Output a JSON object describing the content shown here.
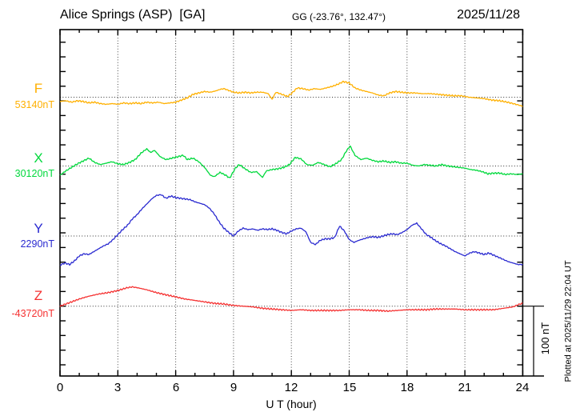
{
  "header": {
    "title": "Alice Springs (ASP)  [GA]",
    "coords": "GG (-23.76°, 132.47°)",
    "date": "2025/11/28"
  },
  "axis": {
    "xlabel": "U T (hour)",
    "ticks": [
      "0",
      "3",
      "6",
      "9",
      "12",
      "15",
      "18",
      "21",
      "24"
    ]
  },
  "scale_bar": {
    "label": "100 nT"
  },
  "footer_note": "Plotted at 2025/11/29 22:04 UT",
  "channels": [
    {
      "letter": "F",
      "value_label": "53140nT",
      "color": "#FFB000"
    },
    {
      "letter": "X",
      "value_label": "30120nT",
      "color": "#00D93C"
    },
    {
      "letter": "Y",
      "value_label": "2290nT",
      "color": "#2A2AD0"
    },
    {
      "letter": "Z",
      "value_label": "-43720nT",
      "color": "#F53131"
    }
  ],
  "chart_data": {
    "type": "line",
    "title": "Alice Springs (ASP) [GA] magnetogram 2025/11/28",
    "xlabel": "U T (hour)",
    "x_range": [
      0,
      24
    ],
    "x_major_tick": 3,
    "grid": "dotted vertical every 3 h, dotted horizontal at each channel baseline",
    "legend_position": "left margin channel labels",
    "scale": "100 nT reference bar at right",
    "series": [
      {
        "name": "F",
        "baseline_nT": 53140,
        "color": "#FFB000",
        "units": "nT offset from baseline",
        "points": [
          [
            0,
            -6
          ],
          [
            0.3,
            -5
          ],
          [
            0.6,
            -7
          ],
          [
            0.9,
            -5
          ],
          [
            1.2,
            -6
          ],
          [
            1.5,
            -8
          ],
          [
            1.8,
            -7
          ],
          [
            2.1,
            -9
          ],
          [
            2.4,
            -10
          ],
          [
            2.7,
            -9
          ],
          [
            3,
            -10
          ],
          [
            3.3,
            -8
          ],
          [
            3.6,
            -9
          ],
          [
            3.9,
            -8
          ],
          [
            4.2,
            -9
          ],
          [
            4.5,
            -7
          ],
          [
            4.8,
            -8
          ],
          [
            5.1,
            -7
          ],
          [
            5.4,
            -9
          ],
          [
            5.7,
            -8
          ],
          [
            6,
            -7
          ],
          [
            6.3,
            -4
          ],
          [
            6.6,
            -1
          ],
          [
            6.9,
            4
          ],
          [
            7.2,
            6
          ],
          [
            7.5,
            8
          ],
          [
            7.8,
            7
          ],
          [
            8.1,
            9
          ],
          [
            8.3,
            11
          ],
          [
            8.5,
            12
          ],
          [
            8.8,
            9
          ],
          [
            9,
            7
          ],
          [
            9.3,
            6
          ],
          [
            9.6,
            7
          ],
          [
            9.9,
            6
          ],
          [
            10.2,
            7
          ],
          [
            10.5,
            7
          ],
          [
            10.8,
            5
          ],
          [
            11,
            -3
          ],
          [
            11.2,
            7
          ],
          [
            11.5,
            4
          ],
          [
            11.8,
            1
          ],
          [
            12,
            5
          ],
          [
            12.3,
            13
          ],
          [
            12.6,
            12
          ],
          [
            12.9,
            10
          ],
          [
            13.2,
            12
          ],
          [
            13.5,
            11
          ],
          [
            13.8,
            13
          ],
          [
            14.1,
            15
          ],
          [
            14.4,
            18
          ],
          [
            14.7,
            22
          ],
          [
            15,
            20
          ],
          [
            15.3,
            13
          ],
          [
            15.6,
            10
          ],
          [
            15.9,
            8
          ],
          [
            16.2,
            6
          ],
          [
            16.5,
            3
          ],
          [
            16.8,
            2
          ],
          [
            17.1,
            6
          ],
          [
            17.4,
            8
          ],
          [
            17.7,
            7
          ],
          [
            18,
            6
          ],
          [
            18.4,
            6
          ],
          [
            18.8,
            5
          ],
          [
            19.2,
            5
          ],
          [
            19.6,
            4
          ],
          [
            20,
            3
          ],
          [
            20.4,
            2
          ],
          [
            20.8,
            2
          ],
          [
            21.2,
            0
          ],
          [
            21.6,
            -1
          ],
          [
            22,
            -2
          ],
          [
            22.4,
            -4
          ],
          [
            22.8,
            -5
          ],
          [
            23.2,
            -7
          ],
          [
            23.5,
            -9
          ],
          [
            23.8,
            -11
          ],
          [
            24,
            -13
          ]
        ]
      },
      {
        "name": "X",
        "baseline_nT": 30120,
        "color": "#00D93C",
        "units": "nT offset from baseline",
        "points": [
          [
            0,
            -13
          ],
          [
            0.3,
            -7
          ],
          [
            0.6,
            -2
          ],
          [
            0.9,
            3
          ],
          [
            1.2,
            7
          ],
          [
            1.5,
            11
          ],
          [
            1.8,
            5
          ],
          [
            2.1,
            2
          ],
          [
            2.4,
            4
          ],
          [
            2.7,
            6
          ],
          [
            3,
            3
          ],
          [
            3.3,
            2
          ],
          [
            3.6,
            5
          ],
          [
            3.9,
            9
          ],
          [
            4.2,
            18
          ],
          [
            4.5,
            24
          ],
          [
            4.7,
            19
          ],
          [
            4.9,
            22
          ],
          [
            5.2,
            13
          ],
          [
            5.5,
            9
          ],
          [
            5.8,
            11
          ],
          [
            6.1,
            13
          ],
          [
            6.4,
            15
          ],
          [
            6.6,
            9
          ],
          [
            6.9,
            11
          ],
          [
            7.2,
            6
          ],
          [
            7.5,
            -2
          ],
          [
            7.8,
            -13
          ],
          [
            8,
            -15
          ],
          [
            8.3,
            -9
          ],
          [
            8.6,
            -13
          ],
          [
            8.8,
            -17
          ],
          [
            9.1,
            -3
          ],
          [
            9.3,
            2
          ],
          [
            9.6,
            -4
          ],
          [
            9.9,
            -9
          ],
          [
            10.2,
            -8
          ],
          [
            10.5,
            -16
          ],
          [
            10.7,
            -7
          ],
          [
            11,
            -5
          ],
          [
            11.3,
            -4
          ],
          [
            11.6,
            -2
          ],
          [
            11.9,
            2
          ],
          [
            12.2,
            12
          ],
          [
            12.5,
            10
          ],
          [
            12.8,
            2
          ],
          [
            13.1,
            1
          ],
          [
            13.4,
            5
          ],
          [
            13.7,
            2
          ],
          [
            14,
            -1
          ],
          [
            14.3,
            3
          ],
          [
            14.6,
            9
          ],
          [
            14.85,
            21
          ],
          [
            15.05,
            28
          ],
          [
            15.3,
            15
          ],
          [
            15.6,
            9
          ],
          [
            15.9,
            11
          ],
          [
            16.2,
            8
          ],
          [
            16.5,
            6
          ],
          [
            16.8,
            7
          ],
          [
            17.1,
            5
          ],
          [
            17.4,
            6
          ],
          [
            17.7,
            4
          ],
          [
            18,
            4
          ],
          [
            18.3,
            1
          ],
          [
            18.6,
            0
          ],
          [
            18.9,
            2
          ],
          [
            19.2,
            1
          ],
          [
            19.5,
            0
          ],
          [
            19.8,
            2
          ],
          [
            20.1,
            0
          ],
          [
            20.4,
            -1
          ],
          [
            20.7,
            -2
          ],
          [
            21,
            -3
          ],
          [
            21.3,
            -5
          ],
          [
            21.6,
            -6
          ],
          [
            21.9,
            -8
          ],
          [
            22.2,
            -11
          ],
          [
            22.5,
            -10
          ],
          [
            22.8,
            -10
          ],
          [
            23.1,
            -12
          ],
          [
            23.4,
            -11
          ],
          [
            23.7,
            -12
          ],
          [
            24,
            -11
          ]
        ]
      },
      {
        "name": "Y",
        "baseline_nT": 2290,
        "color": "#2A2AD0",
        "units": "nT offset from baseline",
        "points": [
          [
            0,
            -41
          ],
          [
            0.25,
            -38
          ],
          [
            0.5,
            -40
          ],
          [
            0.75,
            -35
          ],
          [
            1,
            -28
          ],
          [
            1.25,
            -25
          ],
          [
            1.5,
            -26
          ],
          [
            1.75,
            -22
          ],
          [
            2,
            -18
          ],
          [
            2.25,
            -14
          ],
          [
            2.5,
            -11
          ],
          [
            2.75,
            -5
          ],
          [
            3,
            2
          ],
          [
            3.25,
            9
          ],
          [
            3.5,
            15
          ],
          [
            3.75,
            24
          ],
          [
            4,
            30
          ],
          [
            4.25,
            38
          ],
          [
            4.5,
            45
          ],
          [
            4.75,
            52
          ],
          [
            5,
            57
          ],
          [
            5.25,
            58
          ],
          [
            5.5,
            53
          ],
          [
            5.75,
            56
          ],
          [
            6,
            54
          ],
          [
            6.25,
            53
          ],
          [
            6.5,
            52
          ],
          [
            6.75,
            51
          ],
          [
            7,
            48
          ],
          [
            7.25,
            46
          ],
          [
            7.5,
            44
          ],
          [
            7.75,
            39
          ],
          [
            8,
            31
          ],
          [
            8.25,
            20
          ],
          [
            8.5,
            11
          ],
          [
            8.75,
            5
          ],
          [
            9,
            0
          ],
          [
            9.25,
            7
          ],
          [
            9.5,
            11
          ],
          [
            9.75,
            9
          ],
          [
            10,
            10
          ],
          [
            10.25,
            8
          ],
          [
            10.5,
            10
          ],
          [
            10.75,
            9
          ],
          [
            11,
            10
          ],
          [
            11.25,
            8
          ],
          [
            11.5,
            5
          ],
          [
            11.75,
            3
          ],
          [
            12,
            7
          ],
          [
            12.25,
            10
          ],
          [
            12.5,
            11
          ],
          [
            12.75,
            6
          ],
          [
            13,
            -9
          ],
          [
            13.25,
            -12
          ],
          [
            13.5,
            -6
          ],
          [
            13.75,
            -4
          ],
          [
            14,
            -4
          ],
          [
            14.25,
            -2
          ],
          [
            14.5,
            14
          ],
          [
            14.75,
            7
          ],
          [
            15,
            -5
          ],
          [
            15.25,
            -9
          ],
          [
            15.5,
            -6
          ],
          [
            15.75,
            -4
          ],
          [
            16,
            -2
          ],
          [
            16.25,
            -1
          ],
          [
            16.5,
            -2
          ],
          [
            16.75,
            0
          ],
          [
            17,
            2
          ],
          [
            17.25,
            3
          ],
          [
            17.5,
            2
          ],
          [
            17.75,
            5
          ],
          [
            18,
            9
          ],
          [
            18.25,
            15
          ],
          [
            18.5,
            18
          ],
          [
            18.75,
            10
          ],
          [
            19,
            2
          ],
          [
            19.25,
            -2
          ],
          [
            19.5,
            -7
          ],
          [
            19.75,
            -11
          ],
          [
            20,
            -14
          ],
          [
            20.25,
            -18
          ],
          [
            20.5,
            -22
          ],
          [
            20.75,
            -25
          ],
          [
            21,
            -28
          ],
          [
            21.25,
            -24
          ],
          [
            21.5,
            -22
          ],
          [
            21.75,
            -24
          ],
          [
            22,
            -26
          ],
          [
            22.25,
            -24
          ],
          [
            22.5,
            -27
          ],
          [
            22.75,
            -30
          ],
          [
            23,
            -33
          ],
          [
            23.25,
            -36
          ],
          [
            23.5,
            -38
          ],
          [
            23.75,
            -40
          ],
          [
            24,
            -40
          ]
        ]
      },
      {
        "name": "Z",
        "baseline_nT": -43720,
        "color": "#F53131",
        "units": "nT offset from baseline",
        "points": [
          [
            0,
            0
          ],
          [
            0.5,
            5
          ],
          [
            1,
            10
          ],
          [
            1.5,
            14
          ],
          [
            2,
            17
          ],
          [
            2.5,
            19
          ],
          [
            3,
            22
          ],
          [
            3.25,
            24
          ],
          [
            3.5,
            26
          ],
          [
            3.75,
            27
          ],
          [
            4,
            26
          ],
          [
            4.5,
            23
          ],
          [
            5,
            19
          ],
          [
            5.5,
            16
          ],
          [
            6,
            13
          ],
          [
            6.5,
            10
          ],
          [
            7,
            8
          ],
          [
            7.5,
            6
          ],
          [
            8,
            4
          ],
          [
            8.5,
            3
          ],
          [
            9,
            1
          ],
          [
            9.5,
            0
          ],
          [
            10,
            -1
          ],
          [
            10.5,
            -3
          ],
          [
            11,
            -4
          ],
          [
            11.5,
            -5
          ],
          [
            12,
            -6
          ],
          [
            12.5,
            -5
          ],
          [
            13,
            -6
          ],
          [
            13.5,
            -6
          ],
          [
            14,
            -6
          ],
          [
            14.5,
            -6
          ],
          [
            15,
            -5
          ],
          [
            15.5,
            -5
          ],
          [
            16,
            -6
          ],
          [
            16.5,
            -6
          ],
          [
            17,
            -7
          ],
          [
            17.5,
            -6
          ],
          [
            18,
            -5
          ],
          [
            18.5,
            -5
          ],
          [
            19,
            -5
          ],
          [
            19.5,
            -4
          ],
          [
            20,
            -4
          ],
          [
            20.5,
            -4
          ],
          [
            21,
            -5
          ],
          [
            21.5,
            -5
          ],
          [
            22,
            -5
          ],
          [
            22.5,
            -5
          ],
          [
            23,
            -3
          ],
          [
            23.25,
            -2
          ],
          [
            23.5,
            -1
          ],
          [
            23.75,
            2
          ],
          [
            24,
            4
          ]
        ]
      }
    ]
  }
}
